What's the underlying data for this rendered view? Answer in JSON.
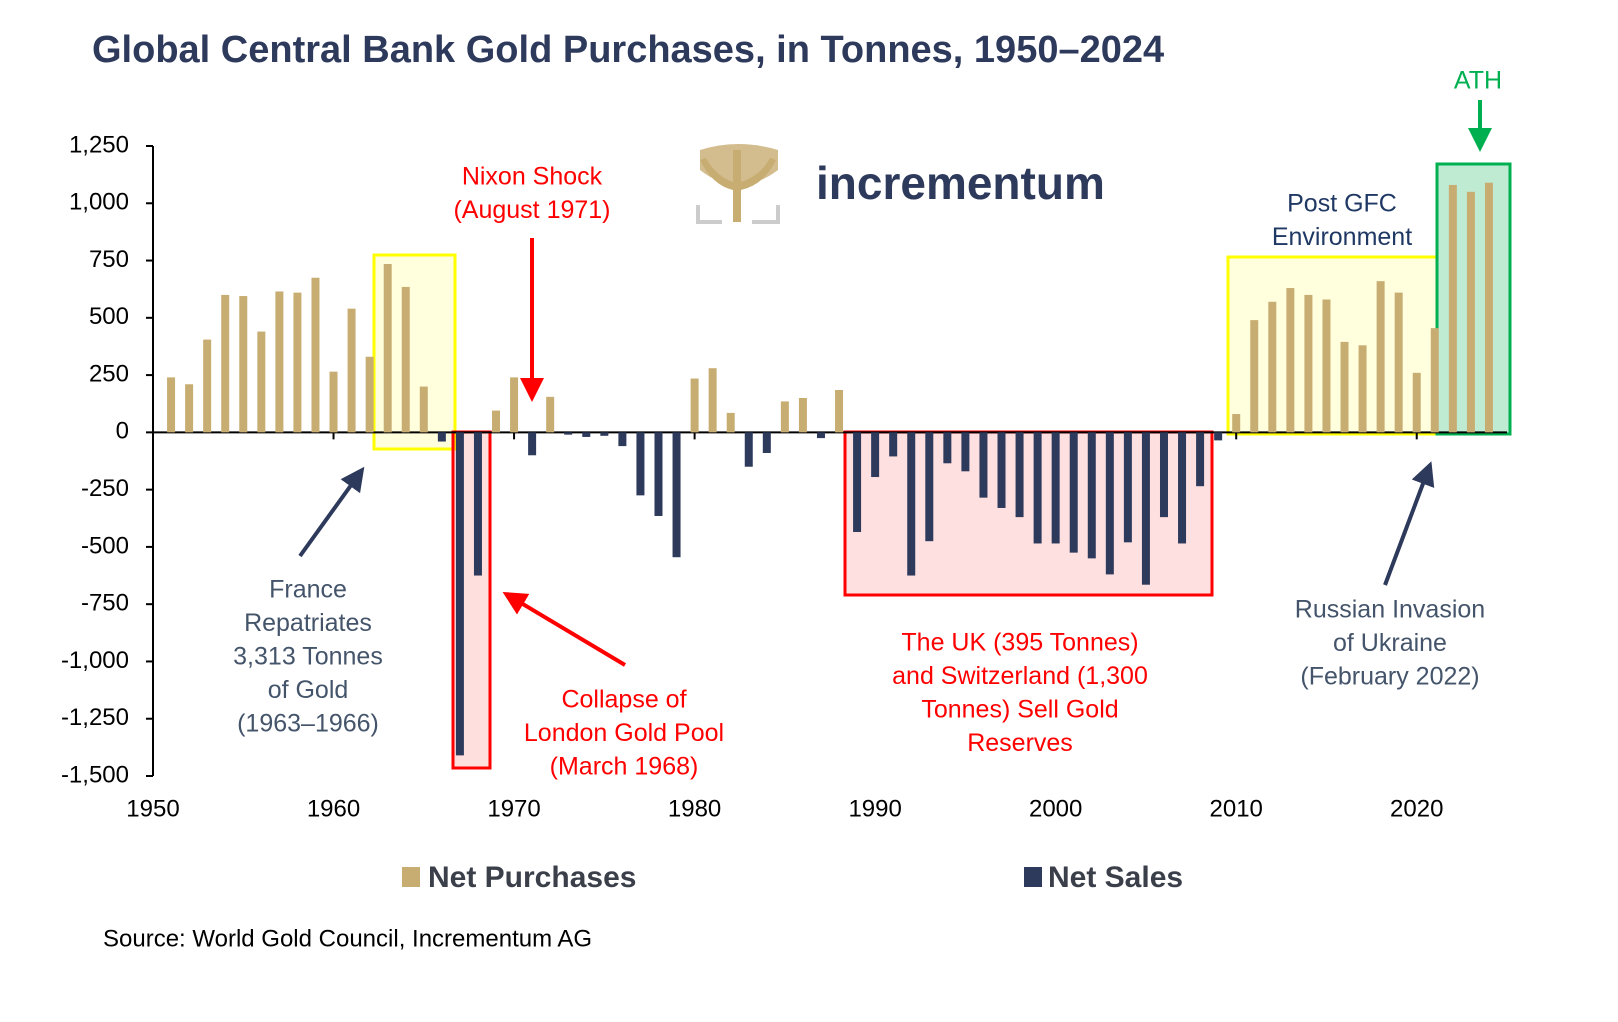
{
  "chart_data": {
    "type": "bar",
    "title": "Global Central Bank Gold Purchases, in Tonnes, 1950–2024",
    "logo": "incrementum",
    "source": "Source: World Gold Council, Incrementum AG",
    "x": [
      1951,
      1952,
      1953,
      1954,
      1955,
      1956,
      1957,
      1958,
      1959,
      1960,
      1961,
      1962,
      1963,
      1964,
      1965,
      1966,
      1967,
      1968,
      1969,
      1970,
      1971,
      1972,
      1973,
      1974,
      1975,
      1976,
      1977,
      1978,
      1979,
      1980,
      1981,
      1982,
      1983,
      1984,
      1985,
      1986,
      1987,
      1988,
      1989,
      1990,
      1991,
      1992,
      1993,
      1994,
      1995,
      1996,
      1997,
      1998,
      1999,
      2000,
      2001,
      2002,
      2003,
      2004,
      2005,
      2006,
      2007,
      2008,
      2009,
      2010,
      2011,
      2012,
      2013,
      2014,
      2015,
      2016,
      2017,
      2018,
      2019,
      2020,
      2021,
      2022,
      2023,
      2024
    ],
    "series": [
      {
        "name": "Net Purchases",
        "color": "#c8ad72",
        "values": [
          240,
          210,
          405,
          600,
          595,
          440,
          615,
          610,
          675,
          265,
          540,
          330,
          735,
          635,
          200,
          null,
          null,
          null,
          95,
          240,
          null,
          155,
          null,
          null,
          null,
          null,
          null,
          null,
          null,
          235,
          280,
          85,
          null,
          null,
          135,
          150,
          null,
          185,
          null,
          null,
          null,
          null,
          null,
          null,
          null,
          null,
          null,
          null,
          null,
          null,
          null,
          null,
          null,
          null,
          null,
          null,
          null,
          null,
          null,
          80,
          490,
          570,
          630,
          600,
          580,
          395,
          380,
          660,
          610,
          260,
          455,
          1080,
          1050,
          1090
        ]
      },
      {
        "name": "Net Sales",
        "color": "#2e3a5c",
        "values": [
          null,
          null,
          null,
          null,
          null,
          null,
          null,
          null,
          null,
          null,
          null,
          null,
          null,
          null,
          null,
          -40,
          -1410,
          -625,
          null,
          null,
          -100,
          null,
          -10,
          -20,
          -15,
          -60,
          -275,
          -365,
          -545,
          null,
          null,
          null,
          -150,
          -90,
          null,
          null,
          -25,
          null,
          -435,
          -195,
          -105,
          -625,
          -475,
          -135,
          -170,
          -285,
          -330,
          -370,
          -485,
          -485,
          -525,
          -550,
          -620,
          -480,
          -665,
          -370,
          -485,
          -235,
          -35,
          null,
          null,
          null,
          null,
          null,
          null,
          null,
          null,
          null,
          null,
          null,
          null,
          null,
          null,
          null
        ]
      }
    ],
    "xlim": [
      1950,
      2025
    ],
    "xticks": [
      1950,
      1960,
      1970,
      1980,
      1990,
      2000,
      2010,
      2020
    ],
    "ylim": [
      -1500,
      1250
    ],
    "yticks": [
      {
        "value": -1500,
        "label": "-1,500"
      },
      {
        "value": -1250,
        "label": "-1,250"
      },
      {
        "value": -1000,
        "label": "-1,000"
      },
      -750,
      -500,
      -250,
      0,
      250,
      500,
      750,
      {
        "value": 1000,
        "label": "1,000"
      },
      {
        "value": 1250,
        "label": "1,250"
      }
    ],
    "annotations": [
      {
        "lines": [
          "Nixon Shock",
          "(August 1971)"
        ],
        "color": "#ff0000"
      },
      {
        "lines": [
          "France",
          "Repatriates",
          "3,313 Tonnes",
          "of Gold",
          "(1963–1966)"
        ],
        "color": "#44546a"
      },
      {
        "lines": [
          "Collapse of",
          "London Gold Pool",
          "(March 1968)"
        ],
        "color": "#ff0000"
      },
      {
        "lines": [
          "The UK (395 Tonnes)",
          "and Switzerland (1,300",
          "Tonnes) Sell Gold",
          "Reserves"
        ],
        "color": "#ff0000"
      },
      {
        "lines": [
          "Post GFC",
          "Environment"
        ],
        "color": "#1f3864"
      },
      {
        "lines": [
          "Russian Invasion",
          "of Ukraine",
          "(February 2022)"
        ],
        "color": "#44546a"
      },
      {
        "lines": [
          "ATH"
        ],
        "color": "#00b050"
      }
    ]
  }
}
